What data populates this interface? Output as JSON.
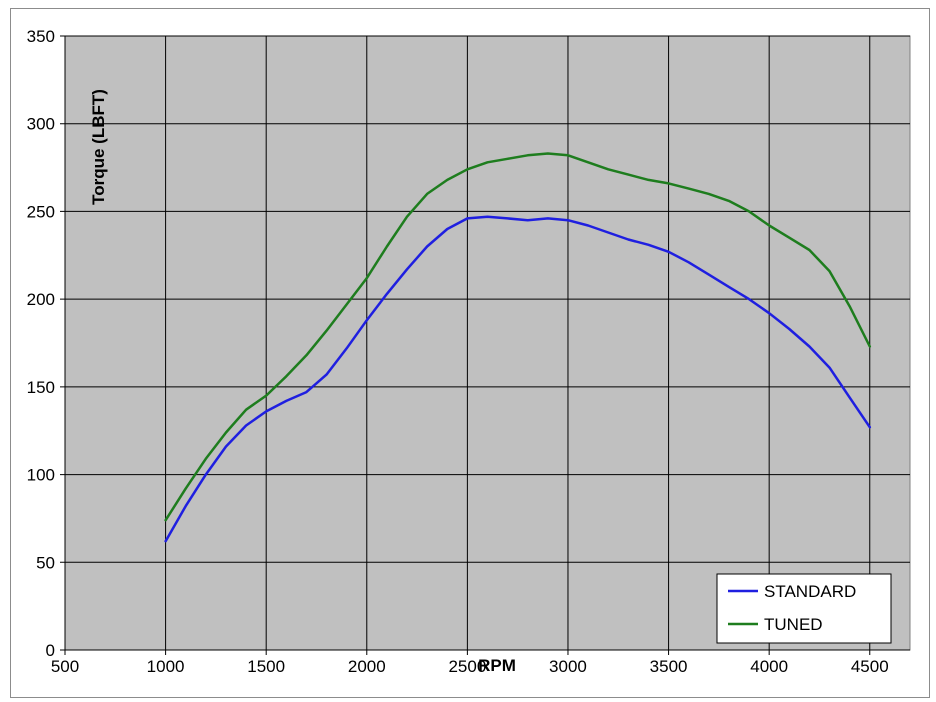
{
  "chart_data": {
    "type": "line",
    "title": "",
    "xlabel": "RPM",
    "ylabel": "Torque  (LBFT)",
    "xlim": [
      500,
      4700
    ],
    "ylim": [
      0,
      350
    ],
    "xticks": [
      500,
      1000,
      1500,
      2000,
      2500,
      3000,
      3500,
      4000,
      4500
    ],
    "yticks": [
      0,
      50,
      100,
      150,
      200,
      250,
      300,
      350
    ],
    "grid": true,
    "legend_position": "bottom-right",
    "background": "#c0c0c0",
    "series": [
      {
        "name": "STANDARD",
        "color": "#1f1fe0",
        "points": [
          [
            1000,
            62
          ],
          [
            1100,
            82
          ],
          [
            1200,
            100
          ],
          [
            1300,
            116
          ],
          [
            1400,
            128
          ],
          [
            1500,
            136
          ],
          [
            1600,
            142
          ],
          [
            1700,
            147
          ],
          [
            1800,
            157
          ],
          [
            1900,
            172
          ],
          [
            2000,
            188
          ],
          [
            2100,
            203
          ],
          [
            2200,
            217
          ],
          [
            2300,
            230
          ],
          [
            2400,
            240
          ],
          [
            2500,
            246
          ],
          [
            2600,
            247
          ],
          [
            2700,
            246
          ],
          [
            2800,
            245
          ],
          [
            2900,
            246
          ],
          [
            3000,
            245
          ],
          [
            3100,
            242
          ],
          [
            3200,
            238
          ],
          [
            3300,
            234
          ],
          [
            3400,
            231
          ],
          [
            3500,
            227
          ],
          [
            3600,
            221
          ],
          [
            3700,
            214
          ],
          [
            3800,
            207
          ],
          [
            3900,
            200
          ],
          [
            4000,
            192
          ],
          [
            4100,
            183
          ],
          [
            4200,
            173
          ],
          [
            4300,
            161
          ],
          [
            4400,
            144
          ],
          [
            4500,
            127
          ]
        ]
      },
      {
        "name": "TUNED",
        "color": "#1e7d1e",
        "points": [
          [
            1000,
            74
          ],
          [
            1100,
            92
          ],
          [
            1200,
            109
          ],
          [
            1300,
            124
          ],
          [
            1400,
            137
          ],
          [
            1500,
            145
          ],
          [
            1600,
            156
          ],
          [
            1700,
            168
          ],
          [
            1800,
            182
          ],
          [
            1900,
            197
          ],
          [
            2000,
            212
          ],
          [
            2100,
            230
          ],
          [
            2200,
            247
          ],
          [
            2300,
            260
          ],
          [
            2400,
            268
          ],
          [
            2500,
            274
          ],
          [
            2600,
            278
          ],
          [
            2700,
            280
          ],
          [
            2800,
            282
          ],
          [
            2900,
            283
          ],
          [
            3000,
            282
          ],
          [
            3100,
            278
          ],
          [
            3200,
            274
          ],
          [
            3300,
            271
          ],
          [
            3400,
            268
          ],
          [
            3500,
            266
          ],
          [
            3600,
            263
          ],
          [
            3700,
            260
          ],
          [
            3800,
            256
          ],
          [
            3900,
            250
          ],
          [
            4000,
            242
          ],
          [
            4100,
            235
          ],
          [
            4200,
            228
          ],
          [
            4300,
            216
          ],
          [
            4400,
            196
          ],
          [
            4500,
            173
          ]
        ]
      }
    ]
  }
}
